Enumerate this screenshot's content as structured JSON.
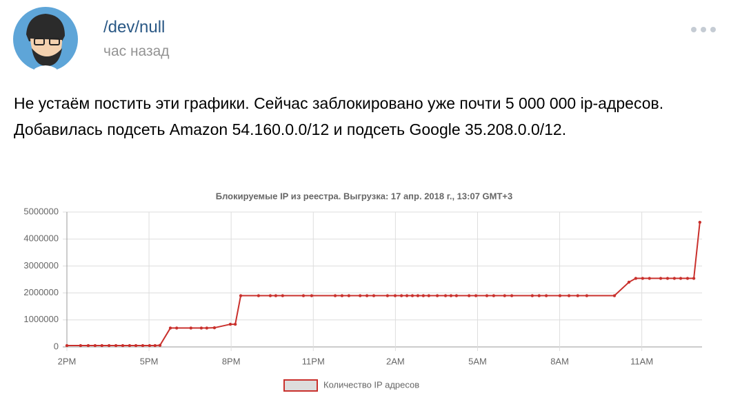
{
  "post": {
    "author": "/dev/null",
    "time": "час назад",
    "text": "Не устаём постить эти графики. Сейчас заблокировано уже почти 5 000 000 ip-адресов. Добавилась подсеть Amazon 54.160.0.0/12 и подсеть Google 35.208.0.0/12."
  },
  "chart_data": {
    "type": "line",
    "title": "Блокируемые IP из реестра. Выгрузка: 17 апр. 2018 г., 13:07 GMT+3",
    "x": [
      0,
      0.5,
      0.78,
      1.03,
      1.28,
      1.54,
      1.79,
      2.04,
      2.29,
      2.52,
      2.77,
      3.02,
      3.22,
      3.4,
      3.78,
      4.01,
      4.53,
      4.91,
      5.11,
      5.39,
      5.97,
      6.15,
      6.35,
      7.0,
      7.43,
      7.63,
      7.88,
      8.64,
      8.94,
      9.8,
      10.05,
      10.3,
      10.71,
      10.96,
      11.21,
      11.71,
      11.99,
      12.22,
      12.42,
      12.62,
      12.82,
      13.02,
      13.22,
      13.53,
      13.83,
      14.03,
      14.23,
      14.69,
      14.94,
      15.34,
      15.59,
      15.99,
      16.25,
      17.0,
      17.25,
      17.51,
      18.01,
      18.34,
      18.66,
      18.99,
      20.0,
      20.53,
      20.78,
      21.03,
      21.28,
      21.69,
      21.94,
      22.19,
      22.42,
      22.67,
      22.9,
      23.12
    ],
    "series": [
      {
        "name": "Количество IP адресов",
        "color": "#c9302c",
        "fill": "#dddddd",
        "values": [
          50000,
          50000,
          50000,
          50000,
          50000,
          50000,
          50000,
          50000,
          50000,
          50000,
          50000,
          50000,
          50000,
          60000,
          700000,
          700000,
          700000,
          700000,
          700000,
          710000,
          840000,
          840000,
          1900000,
          1900000,
          1900000,
          1900000,
          1900000,
          1900000,
          1900000,
          1900000,
          1900000,
          1900000,
          1900000,
          1900000,
          1900000,
          1900000,
          1900000,
          1900000,
          1900000,
          1900000,
          1900000,
          1900000,
          1900000,
          1900000,
          1900000,
          1900000,
          1900000,
          1900000,
          1900000,
          1900000,
          1900000,
          1900000,
          1900000,
          1900000,
          1900000,
          1900000,
          1900000,
          1900000,
          1900000,
          1900000,
          1900000,
          2400000,
          2540000,
          2540000,
          2540000,
          2540000,
          2540000,
          2540000,
          2540000,
          2540000,
          2540000,
          4620000
        ]
      }
    ],
    "xlim": [
      0,
      23.2
    ],
    "xticks": [
      {
        "value": 0,
        "label": "2PM"
      },
      {
        "value": 3,
        "label": "5PM"
      },
      {
        "value": 6,
        "label": "8PM"
      },
      {
        "value": 9,
        "label": "11PM"
      },
      {
        "value": 12,
        "label": "2AM"
      },
      {
        "value": 15,
        "label": "5AM"
      },
      {
        "value": 18,
        "label": "8AM"
      },
      {
        "value": 21,
        "label": "11AM"
      }
    ],
    "ylim": [
      0,
      5000000
    ],
    "yticks": [
      0,
      1000000,
      2000000,
      3000000,
      4000000,
      5000000
    ],
    "grid": true,
    "legend": "bottom"
  }
}
